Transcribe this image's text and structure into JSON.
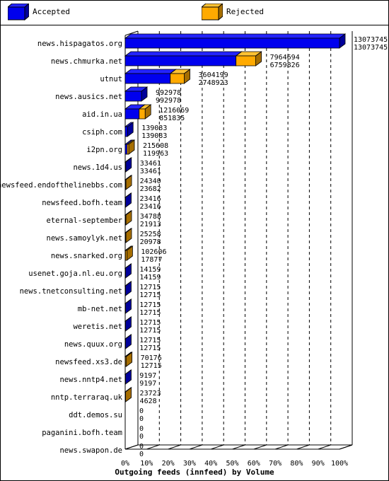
{
  "legend": {
    "accepted_label": "Accepted",
    "rejected_label": "Rejected"
  },
  "colors": {
    "accepted_front": "#0000ee",
    "accepted_top": "#2424ff",
    "accepted_side": "#00009a",
    "rejected_front": "#ffaa00",
    "rejected_top": "#ffc233",
    "rejected_side": "#a66e00"
  },
  "chart_data": {
    "type": "bar",
    "orientation": "horizontal",
    "stacked_3d": true,
    "title": "",
    "xlabel": "Outgoing feeds (innfeed) by Volume",
    "ylabel": "",
    "x_ticks": [
      "0%",
      "10%",
      "20%",
      "30%",
      "40%",
      "50%",
      "60%",
      "70%",
      "80%",
      "90%",
      "100%"
    ],
    "xlim": [
      0,
      13073745
    ],
    "grid": "vertical-dashed",
    "legend_position": "top",
    "categories": [
      "news.hispagatos.org",
      "news.chmurka.net",
      "utnut",
      "news.ausics.net",
      "aid.in.ua",
      "csiph.com",
      "i2pn.org",
      "news.1d4.us",
      "newsfeed.endofthelinebbs.com",
      "newsfeed.bofh.team",
      "eternal-september",
      "news.samoylyk.net",
      "news.snarked.org",
      "usenet.goja.nl.eu.org",
      "news.tnetconsulting.net",
      "mb-net.net",
      "weretis.net",
      "news.quux.org",
      "newsfeed.xs3.de",
      "news.nntp4.net",
      "nntp.terraraq.uk",
      "ddt.demos.su",
      "paganini.bofh.team",
      "news.swapon.de"
    ],
    "series": [
      {
        "name": "Accepted",
        "values": [
          13073745,
          7964694,
          3604199,
          992978,
          1216069,
          139083,
          215608,
          33461,
          24340,
          23416,
          34788,
          25258,
          102606,
          14159,
          12715,
          12715,
          12715,
          12715,
          70176,
          9197,
          23723,
          0,
          0,
          0
        ]
      },
      {
        "name": "Rejected",
        "values": [
          13073745,
          6759826,
          2748923,
          992978,
          851835,
          139083,
          119963,
          33461,
          23682,
          23416,
          21913,
          20978,
          17877,
          14159,
          12715,
          12715,
          12715,
          12715,
          12715,
          9197,
          4628,
          0,
          0,
          0
        ]
      }
    ]
  }
}
